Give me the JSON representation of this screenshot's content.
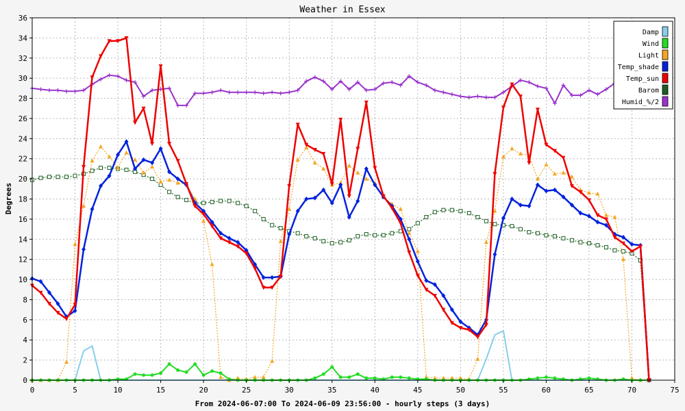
{
  "chart_data": {
    "type": "line",
    "title": "Weather in Essex",
    "xlabel": "From 2024-06-07:00 To 2024-06-09 23:56:00 - hourly steps (3 days)",
    "ylabel": "Degrees",
    "xlim": [
      0,
      75
    ],
    "ylim": [
      0,
      36
    ],
    "x_ticks": [
      0,
      5,
      10,
      15,
      20,
      25,
      30,
      35,
      40,
      45,
      50,
      55,
      60,
      65,
      70,
      75
    ],
    "y_ticks": [
      0,
      2,
      4,
      6,
      8,
      10,
      12,
      14,
      16,
      18,
      20,
      22,
      24,
      26,
      28,
      30,
      32,
      34,
      36
    ],
    "grid": true,
    "legend_position": "top-right",
    "series": [
      {
        "name": "Damp",
        "color": "#87ceeb",
        "marker": "line",
        "dash": false,
        "values": [
          0,
          0,
          0,
          0,
          0,
          0,
          2.9,
          3.4,
          0,
          0,
          0,
          0,
          0,
          0,
          0,
          0,
          0,
          0,
          0,
          0,
          0,
          0,
          0,
          0,
          0,
          0,
          0,
          0,
          0,
          0,
          0,
          0,
          0,
          0,
          0,
          0,
          0,
          0,
          0,
          0,
          0,
          0,
          0,
          0,
          0,
          0,
          0,
          0,
          0,
          0,
          0,
          0,
          0,
          2.1,
          4.5,
          4.9,
          0,
          0,
          0,
          0,
          0,
          0,
          0,
          0,
          0,
          0,
          0,
          0,
          0,
          0,
          0,
          0,
          0
        ]
      },
      {
        "name": "Wind",
        "color": "#22dd22",
        "marker": "dot",
        "dash": false,
        "values": [
          0,
          0,
          0,
          0,
          0,
          0,
          0,
          0,
          0,
          0,
          0.1,
          0.1,
          0.6,
          0.5,
          0.5,
          0.7,
          1.6,
          1.0,
          0.8,
          1.6,
          0.5,
          0.9,
          0.7,
          0.1,
          0,
          0,
          0,
          0,
          0,
          0,
          0,
          0,
          0,
          0.2,
          0.6,
          1.3,
          0.3,
          0.3,
          0.6,
          0.2,
          0.2,
          0.1,
          0.3,
          0.3,
          0.2,
          0.1,
          0.1,
          0,
          0,
          0,
          0,
          0,
          0,
          0,
          0,
          0,
          0,
          0,
          0.1,
          0.2,
          0.3,
          0.2,
          0.1,
          0,
          0.1,
          0.2,
          0.1,
          0,
          0,
          0.1,
          0,
          0,
          0
        ]
      },
      {
        "name": "Light",
        "color": "#f5a623",
        "marker": "triangle",
        "dash": true,
        "values": [
          0,
          0,
          0,
          0,
          1.8,
          13.5,
          17.3,
          21.8,
          23.2,
          22.2,
          21.1,
          22.6,
          21.9,
          20.6,
          21.2,
          19.7,
          19.9,
          19.6,
          19.5,
          18.0,
          15.8,
          11.5,
          0.3,
          0,
          0.2,
          0.1,
          0.3,
          0.3,
          1.9,
          13.8,
          17.0,
          21.9,
          23.1,
          21.6,
          21.0,
          19.4,
          19.6,
          21.3,
          20.6,
          20.0,
          19.6,
          18.2,
          17.5,
          17.0,
          14.6,
          12.8,
          0.3,
          0.2,
          0.2,
          0.2,
          0.2,
          0.1,
          2.1,
          13.7,
          16.8,
          22.2,
          23.0,
          22.5,
          22.3,
          20.0,
          21.4,
          20.5,
          20.6,
          20.2,
          18.9,
          18.6,
          18.5,
          16.4,
          16.2,
          12.0,
          0.2,
          0,
          0
        ]
      },
      {
        "name": "Temp_shade",
        "color": "#0022dd",
        "marker": "diamond",
        "dash": false,
        "values": [
          10.1,
          9.8,
          8.7,
          7.6,
          6.3,
          6.9,
          13.0,
          17.0,
          19.3,
          20.3,
          22.4,
          23.7,
          21.0,
          21.9,
          21.6,
          23.0,
          20.7,
          20.0,
          19.4,
          17.6,
          16.8,
          15.7,
          14.6,
          14.1,
          13.7,
          12.9,
          11.5,
          10.2,
          10.2,
          10.3,
          14.5,
          16.8,
          18.0,
          18.1,
          18.9,
          17.6,
          19.4,
          16.2,
          17.8,
          21.0,
          19.4,
          18.2,
          17.3,
          16.0,
          14.0,
          11.8,
          9.9,
          9.5,
          8.4,
          7.0,
          5.8,
          5.2,
          4.5,
          6.0,
          12.5,
          16.1,
          18.0,
          17.4,
          17.3,
          19.4,
          18.8,
          18.9,
          18.2,
          17.4,
          16.6,
          16.3,
          15.7,
          15.4,
          14.5,
          14.2,
          13.5,
          13.4,
          0
        ]
      },
      {
        "name": "Temp_sun",
        "color": "#ee0000",
        "marker": "tri-down",
        "dash": false,
        "values": [
          9.4,
          8.7,
          7.6,
          6.7,
          6.1,
          7.5,
          21.2,
          30.1,
          32.2,
          33.7,
          33.7,
          34.0,
          25.6,
          27.0,
          23.5,
          31.2,
          23.5,
          21.8,
          19.5,
          17.3,
          16.5,
          15.3,
          14.1,
          13.7,
          13.3,
          12.6,
          11.1,
          9.2,
          9.2,
          10.3,
          19.3,
          25.4,
          23.4,
          22.9,
          22.5,
          19.5,
          25.9,
          18.3,
          23.0,
          27.6,
          21.1,
          18.3,
          17.1,
          15.6,
          12.7,
          10.4,
          9.0,
          8.4,
          7.0,
          5.7,
          5.2,
          5.0,
          4.3,
          5.5,
          20.5,
          27.1,
          29.4,
          28.2,
          21.6,
          26.9,
          23.4,
          22.8,
          22.1,
          19.3,
          18.7,
          17.9,
          16.4,
          16.0,
          14.2,
          13.6,
          12.8,
          13.3,
          0
        ]
      },
      {
        "name": "Barom",
        "color": "#1b5e20",
        "marker": "square",
        "dash": true,
        "values": [
          19.9,
          20.1,
          20.2,
          20.2,
          20.2,
          20.3,
          20.5,
          20.8,
          21.1,
          21.1,
          21.0,
          20.9,
          20.7,
          20.4,
          20.0,
          19.4,
          18.7,
          18.2,
          17.9,
          17.6,
          17.6,
          17.7,
          17.8,
          17.8,
          17.6,
          17.3,
          16.8,
          16.0,
          15.4,
          15.1,
          14.8,
          14.6,
          14.3,
          14.1,
          13.8,
          13.6,
          13.7,
          13.9,
          14.3,
          14.5,
          14.4,
          14.4,
          14.6,
          14.8,
          15.0,
          15.6,
          16.2,
          16.7,
          16.9,
          16.9,
          16.8,
          16.6,
          16.2,
          15.8,
          15.5,
          15.4,
          15.3,
          15.0,
          14.7,
          14.6,
          14.4,
          14.3,
          14.1,
          13.9,
          13.7,
          13.6,
          13.4,
          13.2,
          12.9,
          12.8,
          12.6,
          11.9,
          0
        ]
      },
      {
        "name": "Humid_%/2",
        "color": "#9932cc",
        "marker": "plus",
        "dash": false,
        "values": [
          29.0,
          28.9,
          28.8,
          28.8,
          28.7,
          28.7,
          28.8,
          29.4,
          29.9,
          30.3,
          30.2,
          29.8,
          29.6,
          28.2,
          28.8,
          28.9,
          29.0,
          27.3,
          27.3,
          28.5,
          28.5,
          28.6,
          28.8,
          28.6,
          28.6,
          28.6,
          28.6,
          28.5,
          28.6,
          28.5,
          28.6,
          28.8,
          29.7,
          30.1,
          29.7,
          28.9,
          29.7,
          28.9,
          29.6,
          28.8,
          28.9,
          29.5,
          29.6,
          29.3,
          30.2,
          29.6,
          29.3,
          28.8,
          28.6,
          28.4,
          28.2,
          28.1,
          28.2,
          28.1,
          28.1,
          28.6,
          29.2,
          29.8,
          29.6,
          29.2,
          29.0,
          27.5,
          29.3,
          28.3,
          28.3,
          28.8,
          28.4,
          28.9,
          29.5,
          30.0,
          29.9,
          30.0,
          29.6
        ]
      }
    ]
  }
}
